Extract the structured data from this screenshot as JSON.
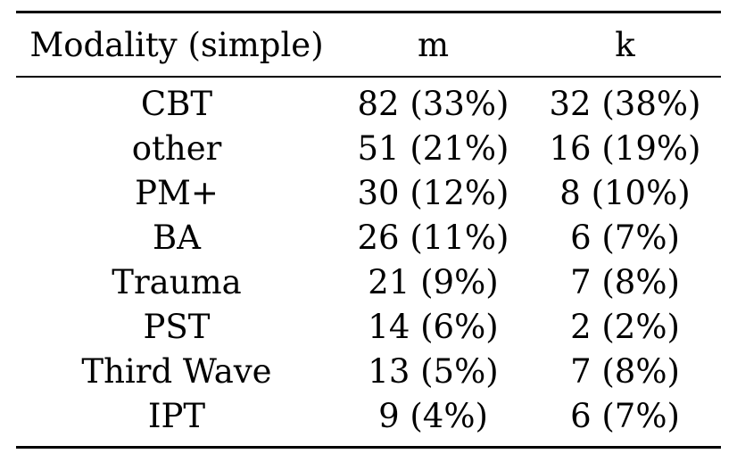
{
  "table": {
    "headers": [
      "Modality (simple)",
      "m",
      "k"
    ],
    "rows": [
      [
        "CBT",
        "82 (33%)",
        "32 (38%)"
      ],
      [
        "other",
        "51 (21%)",
        "16 (19%)"
      ],
      [
        "PM+",
        "30 (12%)",
        "8 (10%)"
      ],
      [
        "BA",
        "26 (11%)",
        "6 (7%)"
      ],
      [
        "Trauma",
        "21 (9%)",
        "7 (8%)"
      ],
      [
        "PST",
        "14 (6%)",
        "2 (2%)"
      ],
      [
        "Third Wave",
        "13 (5%)",
        "7 (8%)"
      ],
      [
        "IPT",
        "9 (4%)",
        "6 (7%)"
      ]
    ]
  }
}
